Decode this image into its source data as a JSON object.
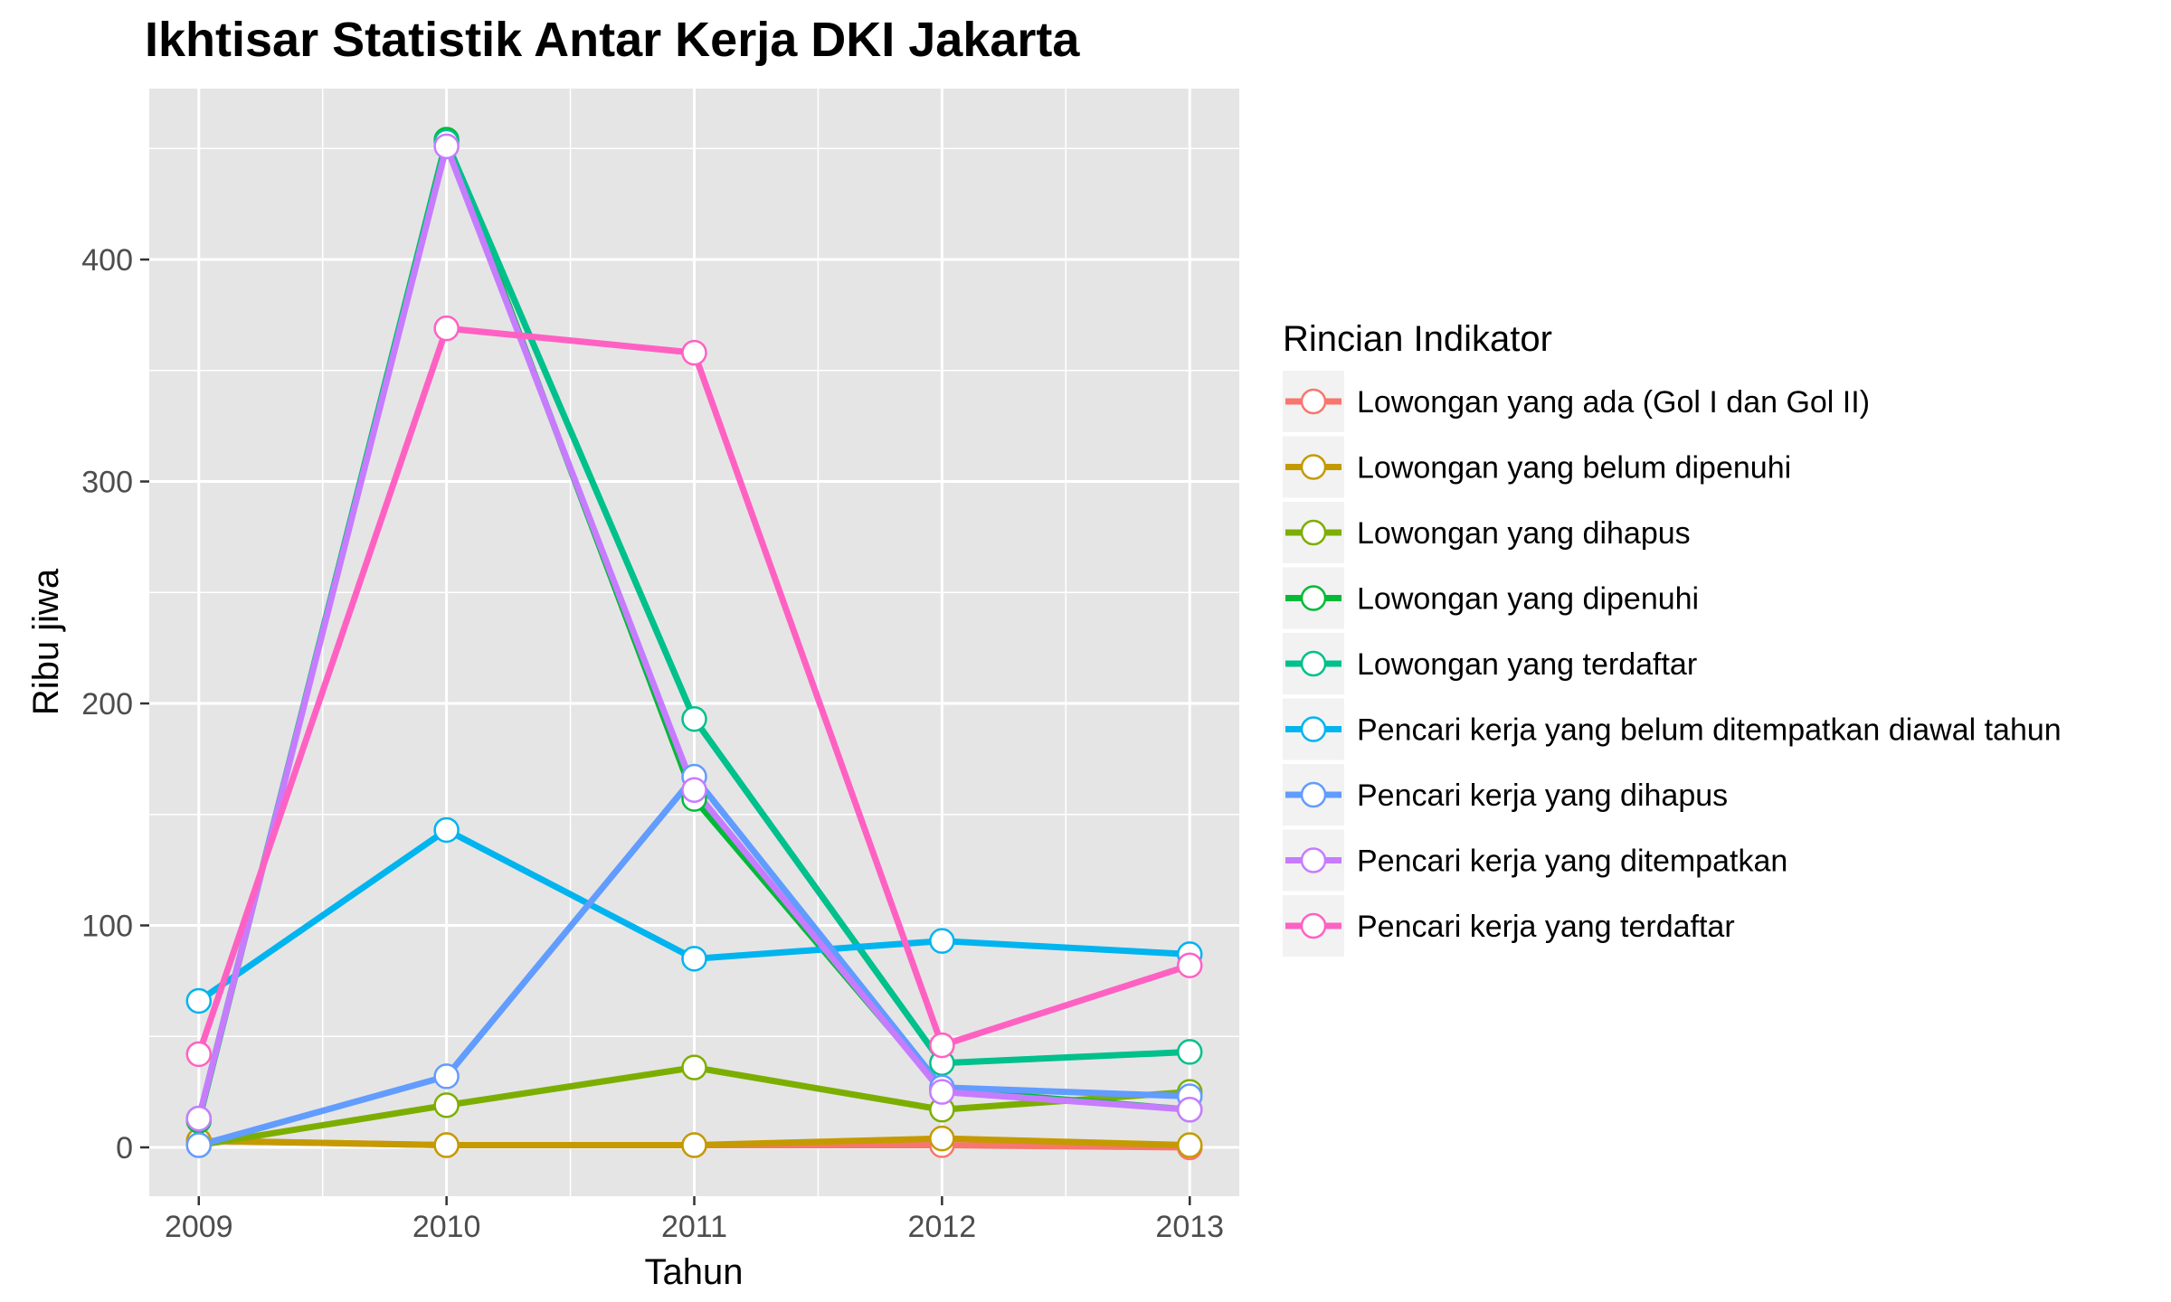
{
  "chart_data": {
    "type": "line",
    "title": "Ikhtisar Statistik Antar Kerja DKI Jakarta",
    "xlabel": "Tahun",
    "ylabel": "Ribu jiwa",
    "x": [
      2009,
      2010,
      2011,
      2012,
      2013
    ],
    "x_tick_labels": [
      "2009",
      "2010",
      "2011",
      "2012",
      "2013"
    ],
    "y_ticks": [
      0,
      100,
      200,
      300,
      400
    ],
    "y_tick_labels": [
      "0",
      "100",
      "200",
      "300",
      "400"
    ],
    "ylim": [
      -22,
      477
    ],
    "xlim": [
      2008.8,
      2013.2
    ],
    "grid": true,
    "legend_position": "right",
    "legend_title": "Rincian Indikator",
    "series": [
      {
        "name": "Lowongan yang ada (Gol I dan Gol II)",
        "color": "#F8766D",
        "values": [
          3,
          1,
          1,
          1,
          0
        ]
      },
      {
        "name": "Lowongan yang belum dipenuhi",
        "color": "#C49A00",
        "values": [
          3,
          1,
          1,
          4,
          1
        ]
      },
      {
        "name": "Lowongan yang dihapus",
        "color": "#7CAE00",
        "values": [
          1,
          19,
          36,
          17,
          25
        ]
      },
      {
        "name": "Lowongan yang dipenuhi",
        "color": "#00BA38",
        "values": [
          12,
          454,
          157,
          26,
          17
        ]
      },
      {
        "name": "Lowongan yang terdaftar",
        "color": "#00C08B",
        "values": [
          13,
          453,
          193,
          38,
          43
        ]
      },
      {
        "name": "Pencari kerja yang belum ditempatkan diawal tahun",
        "color": "#00B4EF",
        "values": [
          66,
          143,
          85,
          93,
          87
        ]
      },
      {
        "name": "Pencari kerja yang dihapus",
        "color": "#619CFF",
        "values": [
          1,
          32,
          167,
          27,
          23
        ]
      },
      {
        "name": "Pencari kerja yang ditempatkan",
        "color": "#C77CFF",
        "values": [
          13,
          451,
          161,
          25,
          17
        ]
      },
      {
        "name": "Pencari kerja yang terdaftar",
        "color": "#FF61C3",
        "values": [
          42,
          369,
          358,
          46,
          82
        ]
      }
    ]
  }
}
